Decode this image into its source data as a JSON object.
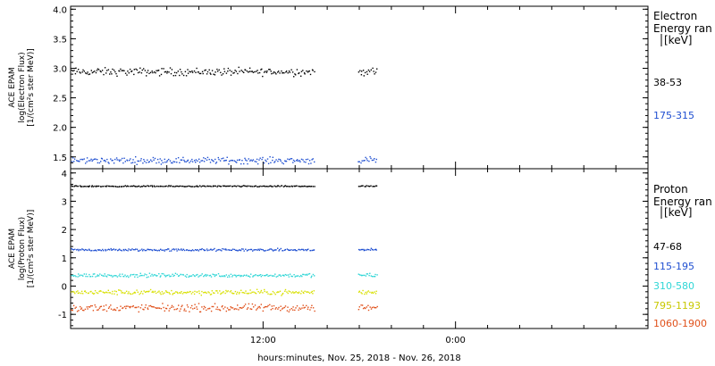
{
  "x_axis": {
    "ticks": [
      {
        "label": "12:00",
        "hour": 12
      },
      {
        "label": "0:00",
        "hour": 24
      }
    ],
    "title": "hours:minutes, Nov. 25, 2018 - Nov. 26, 2018",
    "range_hours": [
      0,
      36
    ]
  },
  "chart_data": [
    {
      "type": "scatter",
      "panel": "electron",
      "ylabel_lines": [
        "ACE EPAM",
        "log(Electron Flux)",
        "[1/(cm²s ster MeV)]"
      ],
      "ylim": [
        1.3,
        4.05
      ],
      "yticks": [
        1.5,
        2.0,
        2.5,
        3.0,
        3.5,
        4.0
      ],
      "ytick_labels": [
        "1.5",
        "2.0",
        "2.5",
        "3.0",
        "3.5",
        "4.0"
      ],
      "legend_title": [
        "Electron",
        "Energy ran",
        "[keV]"
      ],
      "series": [
        {
          "name": "38-53",
          "color": "#000000",
          "mean": 2.95,
          "spread": 0.06
        },
        {
          "name": "175-315",
          "color": "#1f4fd1",
          "mean": 1.45,
          "spread": 0.05
        }
      ]
    },
    {
      "type": "scatter",
      "panel": "proton",
      "ylabel_lines": [
        "ACE EPAM",
        "log(Proton Flux)",
        "[1/(cm²s ster MeV)]"
      ],
      "ylim": [
        -1.5,
        4.15
      ],
      "yticks": [
        -1,
        0,
        1,
        2,
        3,
        4
      ],
      "ytick_labels": [
        "-1",
        "0",
        "1",
        "2",
        "3",
        "4"
      ],
      "legend_title": [
        "Proton",
        "Energy ran",
        "[keV]"
      ],
      "series": [
        {
          "name": "47-68",
          "color": "#000000",
          "mean": 3.55,
          "spread": 0.02
        },
        {
          "name": "115-195",
          "color": "#1f4fd1",
          "mean": 1.3,
          "spread": 0.04
        },
        {
          "name": "310-580",
          "color": "#2fd6d6",
          "mean": 0.4,
          "spread": 0.06
        },
        {
          "name": "795-1193",
          "color": "#d8e000",
          "mean": -0.2,
          "spread": 0.08
        },
        {
          "name": "1060-1900",
          "color": "#e0501a",
          "mean": -0.75,
          "spread": 0.12
        }
      ]
    }
  ],
  "data_coverage": {
    "segments_hours": [
      [
        0,
        15.2
      ],
      [
        17.9,
        19.1
      ]
    ]
  }
}
